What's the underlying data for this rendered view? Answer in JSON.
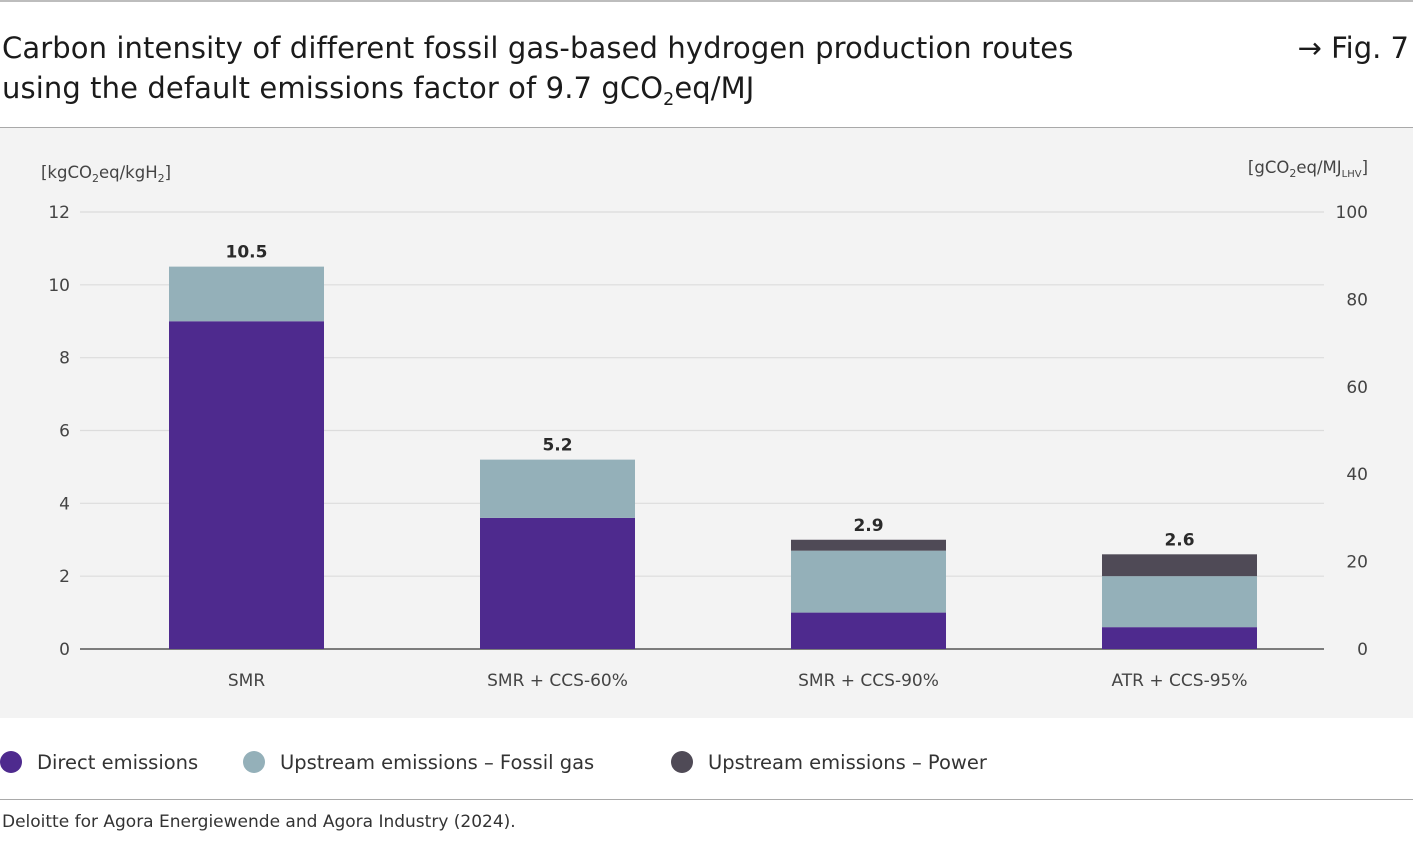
{
  "header": {
    "title_line1": "Carbon intensity of different fossil gas-based hydrogen production routes",
    "title_line2_prefix": "using the default emissions factor of 9.7 gCO",
    "title_line2_sub": "2",
    "title_line2_suffix": "eq/MJ",
    "fig_ref": "→ Fig. 7"
  },
  "footer": {
    "source": "Deloitte for Agora Energiewende and Agora Industry (2024)."
  },
  "colors": {
    "direct": "#4e2a8e",
    "fossil_gas": "#94b0b9",
    "power": "#4f4a56",
    "grid": "#dcdcdc",
    "baseline": "#555555",
    "panel_bg": "#f3f3f3"
  },
  "chart_data": {
    "type": "bar",
    "stacked": true,
    "categories": [
      "SMR",
      "SMR + CCS-60%",
      "SMR + CCS-90%",
      "ATR + CCS-95%"
    ],
    "series": [
      {
        "name": "Direct emissions",
        "color": "#4e2a8e",
        "values": [
          9.0,
          3.6,
          1.0,
          0.6
        ]
      },
      {
        "name": "Upstream emissions – Fossil gas",
        "color": "#94b0b9",
        "values": [
          1.5,
          1.6,
          1.7,
          1.4
        ]
      },
      {
        "name": "Upstream emissions – Power",
        "color": "#4f4a56",
        "values": [
          0.0,
          0.0,
          0.3,
          0.6
        ]
      }
    ],
    "totals": [
      "10.5",
      "5.2",
      "2.9",
      "2.6"
    ],
    "y_left": {
      "unit_prefix": "[kgCO",
      "unit_sub1": "2",
      "unit_mid": "eq/kgH",
      "unit_sub2": "2",
      "unit_suffix": "]",
      "ylim": [
        0,
        12
      ],
      "ticks": [
        0,
        2,
        4,
        6,
        8,
        10,
        12
      ]
    },
    "y_right": {
      "unit_prefix": "[gCO",
      "unit_sub1": "2",
      "unit_mid": "eq/MJ",
      "unit_sub2": "LHV",
      "unit_suffix": "]",
      "ylim": [
        0,
        100
      ],
      "ticks": [
        0,
        20,
        40,
        60,
        80,
        100
      ]
    },
    "grid": true,
    "legend_position": "bottom"
  }
}
